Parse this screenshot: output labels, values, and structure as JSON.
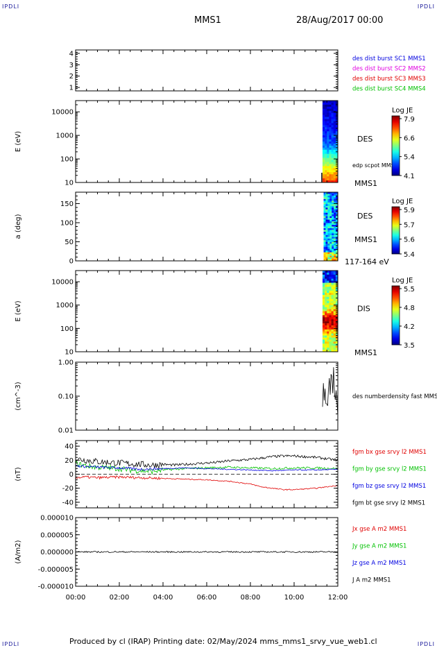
{
  "header": {
    "corner_tl": "IPDLI",
    "corner_tr": "IPDLI",
    "corner_bl": "IPDLI",
    "corner_br": "IPDLI",
    "spacecraft": "MMS1",
    "date": "28/Aug/2017 00:00"
  },
  "footer": {
    "produced": "Produced by cl (IRAP)   Printing date: 02/May/2024   mms_mms1_srvy_vue_web1.cl"
  },
  "colors": {
    "blue": "#0000e0",
    "magenta": "#e000e0",
    "red": "#e00000",
    "green": "#00c000",
    "black": "#000000"
  },
  "time_axis": {
    "range_hours": [
      0,
      12
    ],
    "ticks": [
      0,
      2,
      4,
      6,
      8,
      10,
      12
    ],
    "tick_labels": [
      "00:00",
      "02:00",
      "04:00",
      "06:00",
      "08:00",
      "10:00",
      "12:00"
    ]
  },
  "chart_data": [
    {
      "type": "line",
      "panel": "burst",
      "y_ticks": [
        1,
        2,
        3,
        4
      ],
      "y_tick_labels": [
        "1",
        "2",
        "3",
        "4"
      ],
      "ylim": [
        0.7,
        4.3
      ],
      "legend": [
        {
          "label": "des dist burst SC1 MMS1",
          "color": "#0000e0"
        },
        {
          "label": "des dist burst SC2 MMS2",
          "color": "#e000e0"
        },
        {
          "label": "des dist burst SC3 MMS3",
          "color": "#e00000"
        },
        {
          "label": "des dist burst SC4 MMS4",
          "color": "#00c000"
        }
      ],
      "series": []
    },
    {
      "type": "heatmap",
      "panel": "des-energy",
      "ylabel": "E (eV)",
      "yscale": "log",
      "ylim": [
        10,
        30000
      ],
      "y_ticks": [
        10,
        100,
        1000,
        10000
      ],
      "y_tick_labels": [
        "10",
        "100",
        "1000",
        "10000"
      ],
      "data_start_hour": 11.3,
      "label": "DES",
      "sublabel": "edp scpot MMS1",
      "bottom_label": "MMS1",
      "colorbar": {
        "title": "Log JE",
        "tick_labels": [
          "7.9",
          "6.6",
          "5.4",
          "4.1"
        ]
      }
    },
    {
      "type": "heatmap",
      "panel": "des-pitch",
      "ylabel": "a (deg)",
      "ylim": [
        0,
        180
      ],
      "y_ticks": [
        0,
        50,
        100,
        150
      ],
      "y_tick_labels": [
        "0",
        "50",
        "100",
        "150"
      ],
      "data_start_hour": 11.35,
      "label": "DES",
      "sublabel": "MMS1",
      "bottom_label": "117-164 eV",
      "colorbar": {
        "title": "Log JE",
        "tick_labels": [
          "5.9",
          "5.7",
          "5.6",
          "5.4"
        ]
      }
    },
    {
      "type": "heatmap",
      "panel": "dis-energy",
      "ylabel": "E (eV)",
      "yscale": "log",
      "ylim": [
        10,
        30000
      ],
      "y_ticks": [
        10,
        100,
        1000,
        10000
      ],
      "y_tick_labels": [
        "10",
        "100",
        "1000",
        "10000"
      ],
      "data_start_hour": 11.3,
      "label": "DIS",
      "bottom_label": "MMS1",
      "colorbar": {
        "title": "Log JE",
        "tick_labels": [
          "5.5",
          "4.8",
          "4.2",
          "3.5"
        ]
      }
    },
    {
      "type": "line",
      "panel": "density",
      "ylabel": "(cm^-3)",
      "yscale": "log",
      "ylim": [
        0.01,
        1.0
      ],
      "y_ticks": [
        0.01,
        0.1,
        1.0
      ],
      "y_tick_labels": [
        "0.01",
        "0.10",
        "1.00"
      ],
      "legend": [
        {
          "label": "des numberdensity fast MMS1",
          "color": "#000000"
        }
      ],
      "series": [
        {
          "name": "des numberdensity fast MMS1",
          "color": "#000000",
          "x": [
            11.3,
            11.33,
            11.36,
            11.4,
            11.43,
            11.47,
            11.5,
            11.55,
            11.6,
            11.65,
            11.7,
            11.75,
            11.8,
            11.85,
            11.9,
            11.95,
            12.0
          ],
          "y": [
            0.05,
            0.25,
            0.08,
            0.15,
            0.06,
            0.12,
            0.2,
            0.1,
            0.3,
            0.15,
            0.4,
            0.22,
            0.55,
            0.18,
            0.12,
            0.08,
            0.05
          ]
        }
      ]
    },
    {
      "type": "line",
      "panel": "fgm",
      "ylabel": "(nT)",
      "ylim": [
        -48,
        48
      ],
      "y_ticks": [
        -40,
        -20,
        0,
        20,
        40
      ],
      "y_tick_labels": [
        "-40",
        "-20",
        "0",
        "20",
        "40"
      ],
      "legend": [
        {
          "label": "fgm bx gse srvy l2 MMS1",
          "color": "#e00000"
        },
        {
          "label": "fgm by gse srvy l2 MMS1",
          "color": "#00c000"
        },
        {
          "label": "fgm bz gse srvy l2 MMS1",
          "color": "#0000e0"
        },
        {
          "label": "fgm bt gse srvy l2 MMS1",
          "color": "#000000"
        }
      ],
      "series": [
        {
          "name": "fgm bt gse srvy l2 MMS1",
          "color": "#000000",
          "x": [
            0,
            0.5,
            1,
            1.5,
            2,
            2.5,
            3,
            3.5,
            4,
            4.5,
            5,
            5.5,
            6,
            6.5,
            7,
            7.5,
            8,
            8.5,
            9,
            9.5,
            10,
            10.5,
            11,
            11.5,
            12
          ],
          "y": [
            22,
            20,
            18,
            17,
            16,
            15,
            14,
            13,
            14,
            13,
            14,
            15,
            16,
            17,
            19,
            20,
            21,
            23,
            25,
            26,
            26,
            25,
            24,
            22,
            20
          ],
          "noise": 3
        },
        {
          "name": "fgm by gse srvy l2 MMS1",
          "color": "#00c000",
          "x": [
            0,
            0.5,
            1,
            1.5,
            2,
            2.5,
            3,
            3.5,
            4,
            4.5,
            5,
            6,
            7,
            8,
            9,
            10,
            11,
            12
          ],
          "y": [
            15,
            12,
            10,
            9,
            8,
            6,
            5,
            4,
            6,
            7,
            8,
            9,
            10,
            9,
            8,
            9,
            9,
            8
          ],
          "noise": 2.5
        },
        {
          "name": "fgm bz gse srvy l2 MMS1",
          "color": "#0000e0",
          "x": [
            0,
            1,
            2,
            3,
            4,
            5,
            6,
            7,
            8,
            9,
            10,
            11,
            12
          ],
          "y": [
            12,
            10,
            9,
            7,
            8,
            9,
            8,
            7,
            6,
            5,
            6,
            6,
            7
          ],
          "noise": 1.2
        },
        {
          "name": "fgm bx gse srvy l2 MMS1",
          "color": "#e00000",
          "x": [
            0,
            0.5,
            1,
            2,
            3,
            4,
            5,
            6,
            7,
            8,
            8.5,
            9,
            9.5,
            10,
            10.5,
            11,
            11.5,
            12
          ],
          "y": [
            -5,
            -4,
            -5,
            -4,
            -5,
            -6,
            -7,
            -8,
            -10,
            -14,
            -18,
            -20,
            -22,
            -22,
            -21,
            -20,
            -18,
            -16
          ],
          "noise": 1.2
        }
      ]
    },
    {
      "type": "line",
      "panel": "current",
      "ylabel": "(A/m2)",
      "ylim": [
        -1e-05,
        1e-05
      ],
      "y_ticks": [
        -1e-05,
        -5e-06,
        0,
        5e-06,
        1e-05
      ],
      "y_tick_labels": [
        "-0.000010",
        "-0.000005",
        "0.000000",
        "0.000005",
        "0.000010"
      ],
      "legend": [
        {
          "label": "Jx gse A m2 MMS1",
          "color": "#e00000"
        },
        {
          "label": "Jy gse A m2 MMS1",
          "color": "#00c000"
        },
        {
          "label": "Jz gse A m2 MMS1",
          "color": "#0000e0"
        },
        {
          "label": "J A m2 MMS1",
          "color": "#000000"
        }
      ],
      "series": [
        {
          "name": "J A m2 MMS1",
          "color": "#000000",
          "x": [
            0,
            12
          ],
          "y": [
            0,
            0
          ],
          "noise": 2e-07
        }
      ]
    }
  ]
}
